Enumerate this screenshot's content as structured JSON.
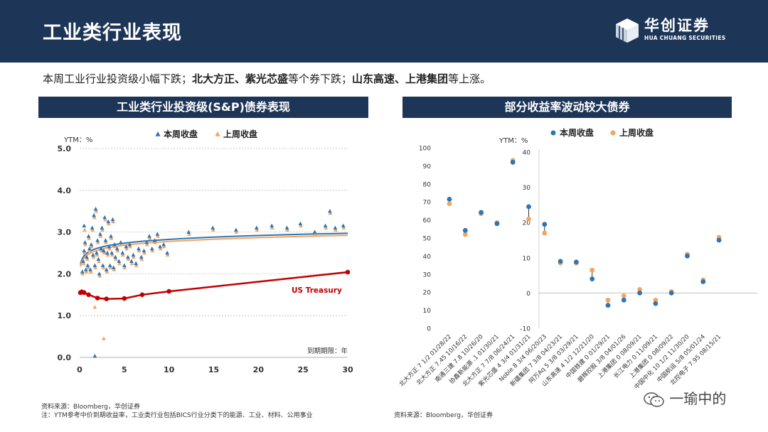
{
  "header": {
    "title": "工业类行业表现",
    "logo_cn": "华创证券",
    "logo_en": "HUA CHUANG SECURITIES"
  },
  "summary": {
    "p1": "本周工业行业投资级小幅下跌；",
    "b1": "北大方正、紫光芯盛",
    "p2": "等个券下跌；",
    "b2": "山东高速、上港集团",
    "p3": "等上涨。"
  },
  "colors": {
    "navy": "#1d3557",
    "this_week": "#2e75b6",
    "last_week": "#f4a460",
    "treasury": "#c00000",
    "gridline": "#d0d0d0"
  },
  "icons": {
    "logo": "cube-logo-icon",
    "watermark": "wechat-icon"
  },
  "notes": {
    "left_source": "资料来源：Bloomberg，华创证券",
    "left_note": "注：YTM参考中价到期收益率，工业类行业包括BICS行业分类下的能源、工业、材料、公用事业",
    "right_source": "资料来源：Bloomberg，华创证券"
  },
  "watermark": "一瑜中的",
  "chart_data": [
    {
      "type": "scatter",
      "title": "工业类行业投资级(S&P)债券表现",
      "ylabel": "YTM：%",
      "xlabel": "到期期限：年",
      "xlim": [
        0,
        30
      ],
      "ylim": [
        0,
        5
      ],
      "xticks": [
        0,
        5,
        10,
        15,
        20,
        25,
        30
      ],
      "yticks": [
        "0.0",
        "1.0",
        "2.0",
        "3.0",
        "4.0",
        "5.0"
      ],
      "grid": true,
      "legend_position": "top",
      "series": [
        {
          "name": "本周收盘",
          "marker": "triangle",
          "points": [
            [
              0.3,
              2.05
            ],
            [
              0.4,
              2.3
            ],
            [
              0.5,
              2.55
            ],
            [
              0.5,
              3.15
            ],
            [
              0.6,
              2.75
            ],
            [
              0.7,
              2.1
            ],
            [
              0.8,
              2.4
            ],
            [
              0.9,
              2.2
            ],
            [
              1.0,
              2.9
            ],
            [
              1.1,
              2.6
            ],
            [
              1.2,
              2.1
            ],
            [
              1.3,
              2.7
            ],
            [
              1.4,
              3.1
            ],
            [
              1.5,
              2.45
            ],
            [
              1.6,
              3.4
            ],
            [
              1.7,
              2.2
            ],
            [
              1.8,
              3.55
            ],
            [
              1.9,
              2.5
            ],
            [
              2.0,
              2.8
            ],
            [
              2.1,
              2.35
            ],
            [
              2.2,
              2.0
            ],
            [
              2.3,
              2.95
            ],
            [
              2.4,
              2.6
            ],
            [
              2.5,
              3.1
            ],
            [
              2.6,
              2.2
            ],
            [
              2.7,
              2.55
            ],
            [
              2.8,
              3.35
            ],
            [
              2.9,
              2.8
            ],
            [
              3.0,
              2.1
            ],
            [
              3.1,
              2.5
            ],
            [
              3.2,
              3.25
            ],
            [
              3.3,
              2.65
            ],
            [
              3.4,
              2.2
            ],
            [
              3.5,
              2.9
            ],
            [
              3.6,
              2.5
            ],
            [
              3.7,
              3.3
            ],
            [
              3.8,
              2.15
            ],
            [
              3.9,
              2.7
            ],
            [
              4.0,
              2.4
            ],
            [
              4.2,
              2.6
            ],
            [
              4.4,
              2.3
            ],
            [
              4.6,
              2.75
            ],
            [
              4.8,
              2.5
            ],
            [
              5.0,
              2.2
            ],
            [
              5.2,
              2.65
            ],
            [
              5.4,
              2.4
            ],
            [
              5.6,
              2.7
            ],
            [
              5.8,
              2.3
            ],
            [
              6.0,
              2.45
            ],
            [
              6.3,
              2.25
            ],
            [
              6.6,
              2.6
            ],
            [
              6.9,
              2.4
            ],
            [
              7.2,
              2.55
            ],
            [
              7.5,
              2.75
            ],
            [
              7.8,
              2.9
            ],
            [
              8.1,
              2.6
            ],
            [
              8.4,
              2.8
            ],
            [
              8.7,
              2.95
            ],
            [
              9.0,
              2.65
            ],
            [
              9.4,
              2.7
            ],
            [
              9.8,
              2.5
            ],
            [
              12.2,
              3.0
            ],
            [
              14.9,
              3.1
            ],
            [
              17.5,
              3.05
            ],
            [
              19.8,
              3.1
            ],
            [
              21.5,
              3.15
            ],
            [
              23.2,
              3.1
            ],
            [
              24.7,
              3.2
            ],
            [
              26.3,
              3.0
            ],
            [
              27.5,
              3.15
            ],
            [
              28.0,
              3.5
            ],
            [
              28.6,
              3.1
            ],
            [
              29.5,
              3.15
            ],
            [
              1.7,
              0.03
            ]
          ]
        },
        {
          "name": "上周收盘",
          "marker": "triangle",
          "points": [
            [
              0.35,
              2.0
            ],
            [
              0.45,
              2.25
            ],
            [
              0.55,
              2.5
            ],
            [
              0.55,
              3.05
            ],
            [
              0.65,
              2.7
            ],
            [
              0.75,
              2.05
            ],
            [
              0.85,
              2.35
            ],
            [
              0.95,
              2.15
            ],
            [
              1.05,
              2.85
            ],
            [
              1.15,
              2.55
            ],
            [
              1.25,
              2.05
            ],
            [
              1.35,
              2.65
            ],
            [
              1.45,
              3.05
            ],
            [
              1.55,
              2.4
            ],
            [
              1.65,
              3.35
            ],
            [
              1.75,
              2.15
            ],
            [
              1.85,
              3.5
            ],
            [
              1.95,
              2.45
            ],
            [
              2.05,
              2.75
            ],
            [
              2.15,
              2.3
            ],
            [
              2.25,
              1.95
            ],
            [
              2.35,
              2.9
            ],
            [
              2.45,
              2.55
            ],
            [
              2.55,
              3.05
            ],
            [
              2.65,
              2.15
            ],
            [
              2.75,
              2.5
            ],
            [
              2.85,
              3.3
            ],
            [
              2.95,
              2.75
            ],
            [
              3.05,
              2.05
            ],
            [
              3.15,
              2.45
            ],
            [
              3.25,
              3.2
            ],
            [
              3.35,
              2.6
            ],
            [
              3.45,
              2.15
            ],
            [
              3.55,
              2.85
            ],
            [
              3.65,
              2.45
            ],
            [
              3.75,
              3.25
            ],
            [
              3.85,
              2.1
            ],
            [
              3.95,
              2.65
            ],
            [
              4.05,
              2.35
            ],
            [
              4.25,
              2.55
            ],
            [
              4.45,
              2.25
            ],
            [
              4.65,
              2.7
            ],
            [
              4.85,
              2.45
            ],
            [
              5.05,
              2.15
            ],
            [
              5.25,
              2.6
            ],
            [
              5.45,
              2.35
            ],
            [
              5.65,
              2.65
            ],
            [
              5.85,
              2.25
            ],
            [
              6.05,
              2.4
            ],
            [
              6.35,
              2.2
            ],
            [
              6.65,
              2.55
            ],
            [
              6.95,
              2.35
            ],
            [
              7.25,
              2.5
            ],
            [
              7.55,
              2.7
            ],
            [
              7.85,
              2.85
            ],
            [
              8.15,
              2.55
            ],
            [
              8.45,
              2.75
            ],
            [
              8.75,
              2.9
            ],
            [
              9.05,
              2.6
            ],
            [
              9.45,
              2.65
            ],
            [
              9.85,
              2.45
            ],
            [
              12.25,
              2.95
            ],
            [
              14.95,
              3.05
            ],
            [
              17.55,
              3.0
            ],
            [
              19.85,
              3.05
            ],
            [
              21.55,
              3.1
            ],
            [
              23.25,
              3.05
            ],
            [
              24.75,
              3.15
            ],
            [
              26.35,
              2.95
            ],
            [
              27.55,
              3.1
            ],
            [
              28.05,
              3.45
            ],
            [
              28.65,
              3.05
            ],
            [
              29.55,
              3.1
            ],
            [
              1.7,
              1.2
            ],
            [
              2.7,
              0.45
            ]
          ]
        }
      ],
      "fit_lines": [
        {
          "series": "本周收盘",
          "y_at_0_1": 2.22,
          "y_at_30": 2.97
        },
        {
          "series": "上周收盘",
          "y_at_0_1": 2.17,
          "y_at_30": 2.92
        }
      ],
      "treasury": {
        "name": "US Treasury",
        "x": [
          0.08,
          0.17,
          0.25,
          0.5,
          1,
          2,
          3,
          5,
          7,
          10,
          30
        ],
        "y": [
          1.55,
          1.56,
          1.57,
          1.55,
          1.5,
          1.42,
          1.4,
          1.41,
          1.5,
          1.58,
          2.04
        ]
      }
    },
    {
      "type": "scatter",
      "title": "部分收益率波动较大债券",
      "ylabel": "YTM：%",
      "legend_position": "top",
      "series_names": [
        "本周收盘",
        "上周收盘"
      ],
      "left_axis": {
        "ylim": [
          0,
          100
        ],
        "yticks": [
          "0",
          "10",
          "20",
          "30",
          "40",
          "50",
          "60",
          "70",
          "80",
          "90",
          "100"
        ]
      },
      "right_axis": {
        "ylim": [
          -10,
          40
        ],
        "yticks": [
          "-10",
          "0",
          "10",
          "20",
          "30",
          "40"
        ]
      },
      "categories": [
        "北大方正 7 1/2 01/28/22",
        "北大方正 7.45 10/16/22",
        "南通三建 7.8 10/26/20",
        "协鑫新能源 .1 01/30/21",
        "北大方正 7 7/8 06/24/21",
        "紫光芯盛 4 3/4 01/31/21",
        "Noble 8 3/4 06/20/23",
        "新疆集团 7 3/8 04/23/21",
        "阿万Aq 5 3/8 03/29/21",
        "山东高速 4 1/2 12/21/20",
        "中国铁建 0 01/29/21",
        "碧辉控股 3/8 04/01/26",
        "上港集团 0 08/09/21",
        "长江电力 0 11/09/21",
        "上港集团 0 08/09/22",
        "中国中化 10 1/2 11/30/20",
        "中国航运 5/8 05/01/24",
        "北控电子 7.95 08/15/21"
      ],
      "axis_group": [
        "left",
        "left",
        "left",
        "left",
        "left",
        "right",
        "right",
        "right",
        "right",
        "right",
        "right",
        "right",
        "right",
        "right",
        "right",
        "right",
        "right",
        "right"
      ],
      "this_week": [
        71.5,
        54.2,
        64.2,
        58.0,
        92.0,
        24.5,
        19.5,
        9.0,
        8.8,
        4.0,
        -3.5,
        -2.0,
        0.0,
        -3.0,
        0.0,
        10.5,
        3.2,
        15.0
      ],
      "last_week": [
        69.0,
        52.0,
        63.5,
        58.5,
        93.0,
        21.0,
        17.0,
        8.5,
        8.5,
        6.5,
        -2.0,
        -0.8,
        1.0,
        -2.0,
        0.4,
        11.0,
        3.7,
        15.8
      ]
    }
  ]
}
